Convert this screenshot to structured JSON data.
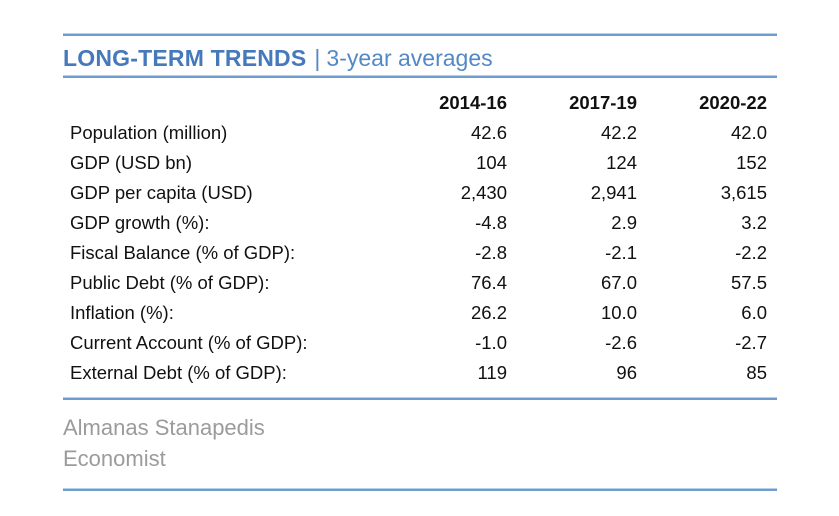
{
  "header": {
    "title": "LONG-TERM TRENDS",
    "separator": "|",
    "subtitle": "3-year averages"
  },
  "table": {
    "columns": [
      "2014-16",
      "2017-19",
      "2020-22"
    ],
    "rows": [
      {
        "label": "Population (million)",
        "values": [
          "42.6",
          "42.2",
          "42.0"
        ]
      },
      {
        "label": "GDP (USD bn)",
        "values": [
          "104",
          "124",
          "152"
        ]
      },
      {
        "label": "GDP per capita (USD)",
        "values": [
          "2,430",
          "2,941",
          "3,615"
        ]
      },
      {
        "label": "GDP growth (%):",
        "values": [
          "-4.8",
          "2.9",
          "3.2"
        ]
      },
      {
        "label": "Fiscal Balance (% of GDP):",
        "values": [
          "-2.8",
          "-2.1",
          "-2.2"
        ]
      },
      {
        "label": "Public Debt (% of GDP):",
        "values": [
          "76.4",
          "67.0",
          "57.5"
        ]
      },
      {
        "label": "Inflation (%):",
        "values": [
          "26.2",
          "10.0",
          "6.0"
        ]
      },
      {
        "label": "Current Account (% of GDP):",
        "values": [
          "-1.0",
          "-2.6",
          "-2.7"
        ]
      },
      {
        "label": "External Debt (% of GDP):",
        "values": [
          "119",
          "96",
          "85"
        ]
      }
    ]
  },
  "footer": {
    "author": "Almanas Stanapedis",
    "role": "Economist"
  },
  "colors": {
    "accent_blue": "#4579bb",
    "subtitle_blue": "#5388c7",
    "rule_blue": "#6f9ccf",
    "footer_gray": "#9b9b9b",
    "text_black": "#111111"
  }
}
